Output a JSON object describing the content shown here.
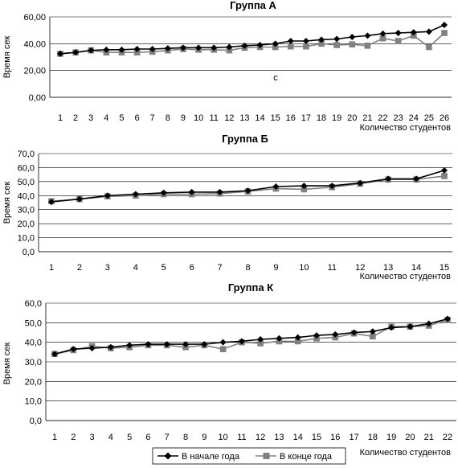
{
  "chart_data": [
    {
      "type": "line",
      "title": "Группа  А",
      "xlabel": "Количество студентов",
      "ylabel": "Время сек",
      "ylim": [
        0,
        60
      ],
      "ytick_step": 20,
      "ytick_labels": [
        "0,00",
        "20,00",
        "40,00",
        "60,00"
      ],
      "grid": "horizontal",
      "x": [
        1,
        2,
        3,
        4,
        5,
        6,
        7,
        8,
        9,
        10,
        11,
        12,
        13,
        14,
        15,
        16,
        17,
        18,
        19,
        20,
        21,
        22,
        23,
        24,
        25,
        26
      ],
      "annotation": "с",
      "series": [
        {
          "name": "В  начале года",
          "marker": "diamond",
          "color": "#000000",
          "values": [
            32.5,
            33.5,
            35,
            35.5,
            35.5,
            36,
            36,
            36.5,
            37,
            37,
            37,
            37.5,
            38.5,
            39,
            40,
            42,
            42,
            43,
            43.5,
            45,
            46,
            47.5,
            48,
            48.5,
            49,
            54
          ]
        },
        {
          "name": "В  конце  года",
          "marker": "square",
          "color": "#808080",
          "values": [
            32.5,
            33.5,
            35,
            33.5,
            33.5,
            33.5,
            34,
            35,
            36,
            35.5,
            35.5,
            35,
            37,
            37.5,
            37.5,
            38,
            38,
            40,
            39,
            39.5,
            38.5,
            44,
            42,
            46,
            37.5,
            48
          ]
        }
      ]
    },
    {
      "type": "line",
      "title": "Группа  Б",
      "xlabel": "Количество студентов",
      "ylabel": "Время сек",
      "ylim": [
        0,
        70
      ],
      "ytick_step": 10,
      "ytick_labels": [
        "0,0",
        "10,0",
        "20,0",
        "30,0",
        "40,0",
        "50,0",
        "60,0",
        "70,0"
      ],
      "grid": "horizontal",
      "x": [
        1,
        2,
        3,
        4,
        5,
        6,
        7,
        8,
        9,
        10,
        11,
        12,
        13,
        14,
        15
      ],
      "series": [
        {
          "name": "В  начале года",
          "marker": "diamond",
          "color": "#000000",
          "values": [
            35.5,
            37.5,
            40,
            41,
            42,
            42.5,
            42.5,
            43.5,
            46.5,
            47,
            47,
            49,
            52,
            52,
            58
          ]
        },
        {
          "name": "В  конце  года",
          "marker": "square",
          "color": "#808080",
          "values": [
            36,
            37.5,
            39.5,
            40,
            41,
            41,
            41.5,
            43,
            45,
            44.5,
            46,
            48.5,
            51.5,
            51.5,
            54
          ]
        }
      ]
    },
    {
      "type": "line",
      "title": "Группа  К",
      "xlabel": "Количество студентов",
      "ylabel": "Время сек",
      "ylim": [
        0,
        60
      ],
      "ytick_step": 10,
      "ytick_labels": [
        "0,0",
        "10,0",
        "20,0",
        "30,0",
        "40,0",
        "50,0",
        "60,0"
      ],
      "grid": "horizontal",
      "x": [
        1,
        2,
        3,
        4,
        5,
        6,
        7,
        8,
        9,
        10,
        11,
        12,
        13,
        14,
        15,
        16,
        17,
        18,
        19,
        20,
        21,
        22
      ],
      "series": [
        {
          "name": "В  начале года",
          "marker": "diamond",
          "color": "#000000",
          "values": [
            34,
            36.5,
            37,
            37.5,
            38.5,
            39,
            39,
            39,
            39,
            40,
            40.5,
            41.5,
            42,
            42.5,
            43.5,
            44,
            45,
            45.5,
            47.5,
            48,
            49.5,
            52
          ]
        },
        {
          "name": "В  конце  года",
          "marker": "square",
          "color": "#808080",
          "values": [
            34,
            36,
            38,
            37,
            37.5,
            38.5,
            38.5,
            37.5,
            38.5,
            36.5,
            40,
            39.5,
            40.5,
            40.5,
            42,
            42.5,
            44.5,
            43,
            48,
            48,
            48.5,
            51.5
          ]
        }
      ]
    }
  ],
  "legend": {
    "placement": "bottom-left",
    "items": [
      {
        "label": "В  начале года",
        "marker": "diamond",
        "color": "#000000"
      },
      {
        "label": "В  конце  года",
        "marker": "square",
        "color": "#808080"
      }
    ]
  }
}
